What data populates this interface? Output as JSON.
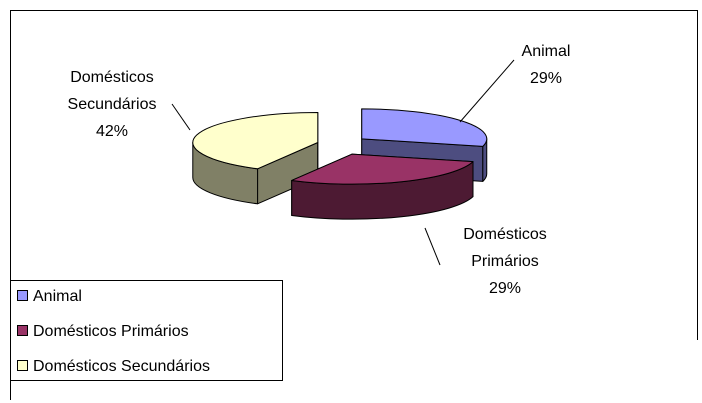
{
  "chart_data": {
    "type": "pie",
    "categories": [
      "Animal",
      "Domésticos Primários",
      "Domésticos Secundários"
    ],
    "values": [
      29,
      29,
      42
    ],
    "value_labels": [
      "29%",
      "29%",
      "42%"
    ],
    "colors": [
      "#9999ff",
      "#993366",
      "#ffffcc"
    ],
    "legend": "bottom-left"
  }
}
